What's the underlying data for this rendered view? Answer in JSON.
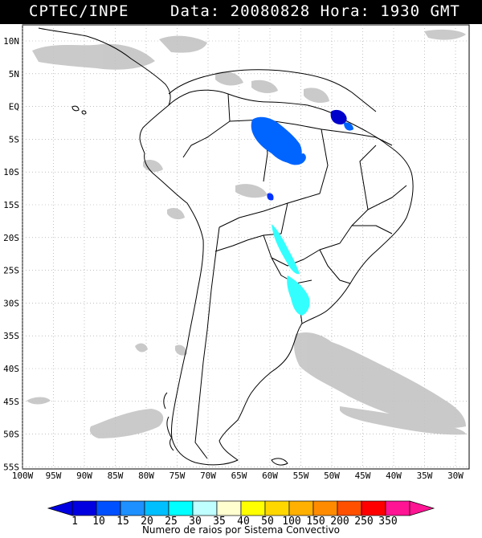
{
  "header": {
    "agency": "CPTEC/INPE",
    "date_label": "Data:",
    "date_value": "20080828",
    "hour_label": "Hora:",
    "hour_value": "1930",
    "timezone": "GMT"
  },
  "map": {
    "lat_labels": [
      "10N",
      "5N",
      "EQ",
      "5S",
      "10S",
      "15S",
      "20S",
      "25S",
      "30S",
      "35S",
      "40S",
      "45S",
      "50S",
      "55S"
    ],
    "lon_labels": [
      "100W",
      "95W",
      "90W",
      "85W",
      "80W",
      "75W",
      "70W",
      "65W",
      "60W",
      "55W",
      "50W",
      "45W",
      "40W",
      "35W",
      "30W"
    ],
    "cloud_color": "#c4c4c4",
    "border_color": "#000000",
    "grid_style": "dotted-gray"
  },
  "colorbar": {
    "labels": [
      "1",
      "10",
      "15",
      "20",
      "25",
      "30",
      "35",
      "40",
      "50",
      "100",
      "150",
      "200",
      "250",
      "350"
    ],
    "colors": [
      "#0000e0",
      "#0050ff",
      "#1e90ff",
      "#00bfff",
      "#00ffff",
      "#bfffff",
      "#ffffd0",
      "#ffff00",
      "#ffd700",
      "#ffb000",
      "#ff8c00",
      "#ff5000",
      "#ff0000",
      "#ff1493"
    ],
    "title": "Numero de raios por Sistema Convectivo"
  }
}
